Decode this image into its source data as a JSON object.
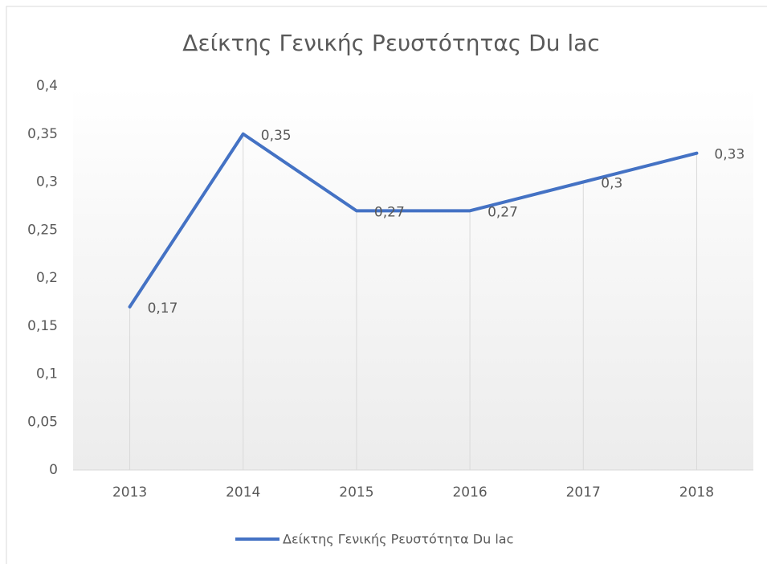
{
  "chart_data": {
    "type": "line",
    "title": "Δείκτης Γενικής Ρευστότητας Du lac",
    "categories": [
      "2013",
      "2014",
      "2015",
      "2016",
      "2017",
      "2018"
    ],
    "series": [
      {
        "name": "Δείκτης Γενικής Ρευστότητα Du lac",
        "color": "#4472c4",
        "values": [
          0.17,
          0.35,
          0.27,
          0.27,
          0.3,
          0.33
        ],
        "value_labels": [
          "0,17",
          "0,35",
          "0,27",
          "0,27",
          "0,3",
          "0,33"
        ]
      }
    ],
    "ylim": [
      0,
      0.4
    ],
    "yticks": [
      0,
      {
        "value": 0.05,
        "label": "0,05"
      },
      {
        "value": 0.1,
        "label": "0,1"
      },
      {
        "value": 0.15,
        "label": "0,15"
      },
      {
        "value": 0.2,
        "label": "0,2"
      },
      {
        "value": 0.25,
        "label": "0,25"
      },
      {
        "value": 0.3,
        "label": "0,3"
      },
      {
        "value": 0.35,
        "label": "0,35"
      },
      {
        "value": 0.4,
        "label": "0,4"
      }
    ],
    "drop_lines": true,
    "legend": "bottom"
  }
}
